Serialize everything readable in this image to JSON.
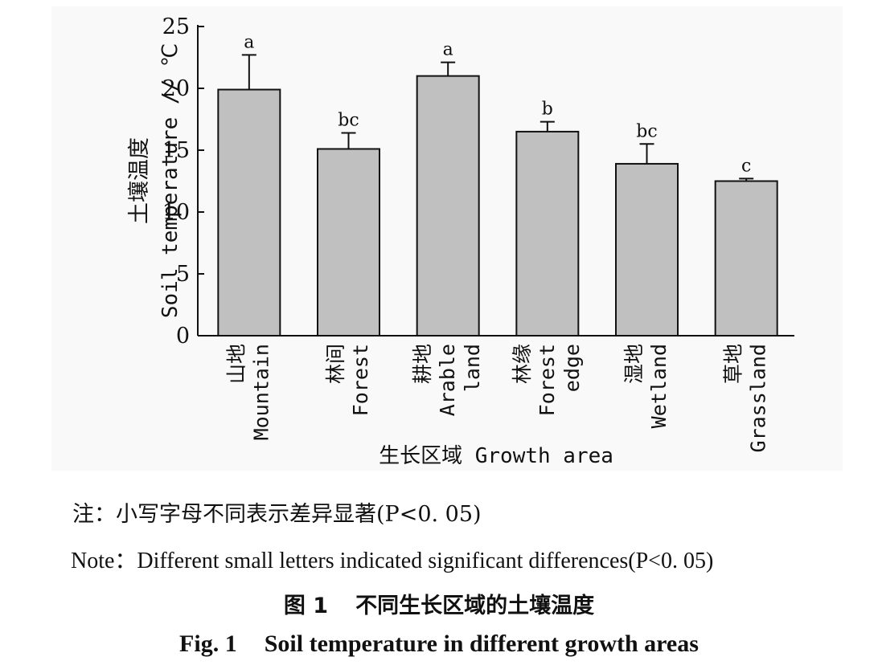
{
  "chart_data": {
    "type": "bar",
    "categories": [
      {
        "cn": "山地",
        "en": [
          "Mountain"
        ]
      },
      {
        "cn": "林间",
        "en": [
          "Forest"
        ]
      },
      {
        "cn": "耕地",
        "en": [
          "Arable",
          "land"
        ]
      },
      {
        "cn": "林缘",
        "en": [
          "Forest",
          "edge"
        ]
      },
      {
        "cn": "湿地",
        "en": [
          "Wetland"
        ]
      },
      {
        "cn": "草地",
        "en": [
          "Grassland"
        ]
      }
    ],
    "values": [
      19.9,
      15.1,
      21.0,
      16.5,
      13.9,
      12.5
    ],
    "error_upper": [
      22.7,
      16.4,
      22.1,
      17.3,
      15.5,
      12.7
    ],
    "significance": [
      "a",
      "bc",
      "a",
      "b",
      "bc",
      "c"
    ],
    "ylim": [
      0,
      25
    ],
    "yticks": [
      "0",
      "5",
      "10",
      "15",
      "20",
      "25"
    ],
    "ylabel_cn": "土壤温度",
    "ylabel_en": "Soil temperature // ℃",
    "xlabel": "生长区域 Growth area",
    "bar_color": "#c0c0c0",
    "grid": false
  },
  "captions": {
    "note_cn": "注：小写字母不同表示差异显著(P<0. 05)",
    "note_en": "Note：Different small letters indicated significant differences(P<0. 05)",
    "fig_num_cn": "图 1",
    "fig_title_cn": "不同生长区域的土壤温度",
    "fig_num_en": "Fig. 1",
    "fig_title_en": "Soil temperature in different growth areas"
  }
}
